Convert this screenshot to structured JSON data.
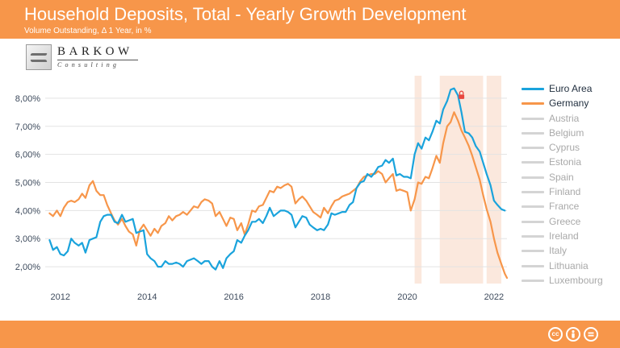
{
  "header": {
    "title": "Household Deposits, Total - Yearly Growth Development",
    "subtitle": "Volume Outstanding, Δ 1 Year, in %"
  },
  "logo": {
    "name": "BARKOW",
    "tagline": "Consulting"
  },
  "colors": {
    "brand": "#f7964a",
    "euro_area": "#1aa3dc",
    "germany": "#f7964a",
    "shading": "#fbe6d9",
    "muted_series": "#d4d4d4",
    "lock": "#e8473f"
  },
  "footer": {
    "license_icons": [
      "cc-icon",
      "attribution-icon",
      "no-derivatives-icon"
    ]
  },
  "chart_data": {
    "type": "line",
    "title": "Household Deposits, Total - Yearly Growth Development",
    "subtitle": "Volume Outstanding, Δ 1 Year, in %",
    "xlim": [
      2011.65,
      2022.3
    ],
    "ylim": [
      1.4,
      8.8
    ],
    "y_ticks": [
      2,
      3,
      4,
      5,
      6,
      7,
      8
    ],
    "y_tick_labels": [
      "2,00%",
      "3,00%",
      "4,00%",
      "5,00%",
      "6,00%",
      "7,00%",
      "8,00%"
    ],
    "x_ticks": [
      2012,
      2014,
      2016,
      2018,
      2020,
      2022
    ],
    "x_tick_labels": [
      "2012",
      "2014",
      "2016",
      "2018",
      "2020",
      "2022"
    ],
    "grid": "horizontal",
    "legend_position": "right",
    "shaded_periods": [
      [
        2020.17,
        2020.33
      ],
      [
        2020.75,
        2021.75
      ],
      [
        2021.83,
        2022.17
      ]
    ],
    "lock_marker": {
      "x": 2021.25,
      "y": 8.1
    },
    "series": [
      {
        "name": "Euro Area",
        "color": "#1aa3dc",
        "points": [
          [
            2011.75,
            2.95
          ],
          [
            2011.83,
            2.6
          ],
          [
            2011.92,
            2.7
          ],
          [
            2012.0,
            2.45
          ],
          [
            2012.08,
            2.4
          ],
          [
            2012.17,
            2.55
          ],
          [
            2012.25,
            3.0
          ],
          [
            2012.33,
            2.85
          ],
          [
            2012.42,
            2.75
          ],
          [
            2012.5,
            2.85
          ],
          [
            2012.58,
            2.5
          ],
          [
            2012.67,
            2.95
          ],
          [
            2012.75,
            3.0
          ],
          [
            2012.83,
            3.05
          ],
          [
            2012.92,
            3.6
          ],
          [
            2013.0,
            3.8
          ],
          [
            2013.08,
            3.85
          ],
          [
            2013.17,
            3.85
          ],
          [
            2013.25,
            3.6
          ],
          [
            2013.33,
            3.55
          ],
          [
            2013.42,
            3.85
          ],
          [
            2013.5,
            3.6
          ],
          [
            2013.58,
            3.65
          ],
          [
            2013.67,
            3.7
          ],
          [
            2013.75,
            3.2
          ],
          [
            2013.83,
            3.25
          ],
          [
            2013.92,
            3.3
          ],
          [
            2014.0,
            2.45
          ],
          [
            2014.08,
            2.3
          ],
          [
            2014.17,
            2.2
          ],
          [
            2014.25,
            2.0
          ],
          [
            2014.33,
            2.0
          ],
          [
            2014.42,
            2.2
          ],
          [
            2014.5,
            2.1
          ],
          [
            2014.58,
            2.1
          ],
          [
            2014.67,
            2.15
          ],
          [
            2014.75,
            2.1
          ],
          [
            2014.83,
            2.0
          ],
          [
            2014.92,
            2.2
          ],
          [
            2015.0,
            2.25
          ],
          [
            2015.08,
            2.3
          ],
          [
            2015.17,
            2.2
          ],
          [
            2015.25,
            2.1
          ],
          [
            2015.33,
            2.2
          ],
          [
            2015.42,
            2.2
          ],
          [
            2015.5,
            2.0
          ],
          [
            2015.58,
            1.9
          ],
          [
            2015.67,
            2.2
          ],
          [
            2015.75,
            1.95
          ],
          [
            2015.83,
            2.3
          ],
          [
            2015.92,
            2.45
          ],
          [
            2016.0,
            2.55
          ],
          [
            2016.08,
            2.95
          ],
          [
            2016.17,
            2.85
          ],
          [
            2016.25,
            3.1
          ],
          [
            2016.33,
            3.3
          ],
          [
            2016.42,
            3.6
          ],
          [
            2016.5,
            3.6
          ],
          [
            2016.58,
            3.7
          ],
          [
            2016.67,
            3.55
          ],
          [
            2016.75,
            3.8
          ],
          [
            2016.83,
            4.1
          ],
          [
            2016.92,
            3.8
          ],
          [
            2017.0,
            3.9
          ],
          [
            2017.08,
            4.0
          ],
          [
            2017.17,
            4.0
          ],
          [
            2017.25,
            3.95
          ],
          [
            2017.33,
            3.85
          ],
          [
            2017.42,
            3.4
          ],
          [
            2017.5,
            3.6
          ],
          [
            2017.58,
            3.8
          ],
          [
            2017.67,
            3.75
          ],
          [
            2017.75,
            3.5
          ],
          [
            2017.83,
            3.4
          ],
          [
            2017.92,
            3.3
          ],
          [
            2018.0,
            3.35
          ],
          [
            2018.08,
            3.3
          ],
          [
            2018.17,
            3.5
          ],
          [
            2018.25,
            3.9
          ],
          [
            2018.33,
            3.85
          ],
          [
            2018.42,
            3.9
          ],
          [
            2018.5,
            3.95
          ],
          [
            2018.58,
            3.95
          ],
          [
            2018.67,
            4.2
          ],
          [
            2018.75,
            4.3
          ],
          [
            2018.83,
            4.8
          ],
          [
            2018.92,
            5.0
          ],
          [
            2019.0,
            5.05
          ],
          [
            2019.08,
            5.3
          ],
          [
            2019.17,
            5.2
          ],
          [
            2019.25,
            5.35
          ],
          [
            2019.33,
            5.55
          ],
          [
            2019.42,
            5.6
          ],
          [
            2019.5,
            5.8
          ],
          [
            2019.58,
            5.7
          ],
          [
            2019.67,
            5.85
          ],
          [
            2019.75,
            5.25
          ],
          [
            2019.83,
            5.3
          ],
          [
            2019.92,
            5.2
          ],
          [
            2020.0,
            5.2
          ],
          [
            2020.08,
            5.15
          ],
          [
            2020.17,
            6.0
          ],
          [
            2020.25,
            6.4
          ],
          [
            2020.33,
            6.2
          ],
          [
            2020.42,
            6.6
          ],
          [
            2020.5,
            6.5
          ],
          [
            2020.58,
            6.8
          ],
          [
            2020.67,
            7.2
          ],
          [
            2020.75,
            7.1
          ],
          [
            2020.83,
            7.6
          ],
          [
            2020.92,
            7.9
          ],
          [
            2021.0,
            8.3
          ],
          [
            2021.08,
            8.35
          ],
          [
            2021.17,
            8.1
          ],
          [
            2021.25,
            7.5
          ],
          [
            2021.33,
            6.8
          ],
          [
            2021.42,
            6.75
          ],
          [
            2021.5,
            6.6
          ],
          [
            2021.58,
            6.3
          ],
          [
            2021.67,
            6.1
          ],
          [
            2021.75,
            5.7
          ],
          [
            2021.83,
            5.3
          ],
          [
            2021.92,
            4.9
          ],
          [
            2022.0,
            4.35
          ],
          [
            2022.08,
            4.2
          ],
          [
            2022.17,
            4.05
          ],
          [
            2022.25,
            4.0
          ]
        ]
      },
      {
        "name": "Germany",
        "color": "#f7964a",
        "points": [
          [
            2011.75,
            3.9
          ],
          [
            2011.83,
            3.8
          ],
          [
            2011.92,
            4.0
          ],
          [
            2012.0,
            3.8
          ],
          [
            2012.08,
            4.1
          ],
          [
            2012.17,
            4.3
          ],
          [
            2012.25,
            4.35
          ],
          [
            2012.33,
            4.3
          ],
          [
            2012.42,
            4.4
          ],
          [
            2012.5,
            4.6
          ],
          [
            2012.58,
            4.45
          ],
          [
            2012.67,
            4.9
          ],
          [
            2012.75,
            5.05
          ],
          [
            2012.83,
            4.7
          ],
          [
            2012.92,
            4.55
          ],
          [
            2013.0,
            4.55
          ],
          [
            2013.08,
            4.2
          ],
          [
            2013.17,
            3.9
          ],
          [
            2013.25,
            3.65
          ],
          [
            2013.33,
            3.5
          ],
          [
            2013.42,
            3.7
          ],
          [
            2013.5,
            3.45
          ],
          [
            2013.58,
            3.25
          ],
          [
            2013.67,
            3.15
          ],
          [
            2013.75,
            2.75
          ],
          [
            2013.83,
            3.3
          ],
          [
            2013.92,
            3.5
          ],
          [
            2014.0,
            3.3
          ],
          [
            2014.08,
            3.1
          ],
          [
            2014.17,
            3.35
          ],
          [
            2014.25,
            3.2
          ],
          [
            2014.33,
            3.45
          ],
          [
            2014.42,
            3.55
          ],
          [
            2014.5,
            3.8
          ],
          [
            2014.58,
            3.65
          ],
          [
            2014.67,
            3.8
          ],
          [
            2014.75,
            3.85
          ],
          [
            2014.83,
            3.95
          ],
          [
            2014.92,
            3.85
          ],
          [
            2015.0,
            4.0
          ],
          [
            2015.08,
            4.15
          ],
          [
            2015.17,
            4.1
          ],
          [
            2015.25,
            4.3
          ],
          [
            2015.33,
            4.4
          ],
          [
            2015.42,
            4.35
          ],
          [
            2015.5,
            4.25
          ],
          [
            2015.58,
            3.8
          ],
          [
            2015.67,
            3.95
          ],
          [
            2015.75,
            3.7
          ],
          [
            2015.83,
            3.45
          ],
          [
            2015.92,
            3.75
          ],
          [
            2016.0,
            3.7
          ],
          [
            2016.08,
            3.3
          ],
          [
            2016.17,
            3.55
          ],
          [
            2016.25,
            3.15
          ],
          [
            2016.33,
            3.5
          ],
          [
            2016.42,
            4.0
          ],
          [
            2016.5,
            3.95
          ],
          [
            2016.58,
            4.15
          ],
          [
            2016.67,
            4.2
          ],
          [
            2016.75,
            4.45
          ],
          [
            2016.83,
            4.7
          ],
          [
            2016.92,
            4.65
          ],
          [
            2017.0,
            4.85
          ],
          [
            2017.08,
            4.8
          ],
          [
            2017.17,
            4.9
          ],
          [
            2017.25,
            4.95
          ],
          [
            2017.33,
            4.85
          ],
          [
            2017.42,
            4.25
          ],
          [
            2017.5,
            4.4
          ],
          [
            2017.58,
            4.5
          ],
          [
            2017.67,
            4.35
          ],
          [
            2017.75,
            4.15
          ],
          [
            2017.83,
            3.95
          ],
          [
            2017.92,
            3.85
          ],
          [
            2018.0,
            3.75
          ],
          [
            2018.08,
            4.1
          ],
          [
            2018.17,
            3.9
          ],
          [
            2018.25,
            4.15
          ],
          [
            2018.33,
            4.35
          ],
          [
            2018.42,
            4.4
          ],
          [
            2018.5,
            4.5
          ],
          [
            2018.58,
            4.55
          ],
          [
            2018.67,
            4.6
          ],
          [
            2018.75,
            4.7
          ],
          [
            2018.83,
            4.8
          ],
          [
            2018.92,
            5.05
          ],
          [
            2019.0,
            5.2
          ],
          [
            2019.08,
            5.25
          ],
          [
            2019.17,
            5.3
          ],
          [
            2019.25,
            5.3
          ],
          [
            2019.33,
            5.4
          ],
          [
            2019.42,
            5.3
          ],
          [
            2019.5,
            5.0
          ],
          [
            2019.58,
            5.15
          ],
          [
            2019.67,
            5.3
          ],
          [
            2019.75,
            4.7
          ],
          [
            2019.83,
            4.75
          ],
          [
            2019.92,
            4.7
          ],
          [
            2020.0,
            4.65
          ],
          [
            2020.08,
            4.0
          ],
          [
            2020.17,
            4.4
          ],
          [
            2020.25,
            5.0
          ],
          [
            2020.33,
            4.95
          ],
          [
            2020.42,
            5.2
          ],
          [
            2020.5,
            5.15
          ],
          [
            2020.58,
            5.5
          ],
          [
            2020.67,
            5.95
          ],
          [
            2020.75,
            5.7
          ],
          [
            2020.83,
            6.4
          ],
          [
            2020.92,
            7.0
          ],
          [
            2021.0,
            7.15
          ],
          [
            2021.08,
            7.5
          ],
          [
            2021.17,
            7.2
          ],
          [
            2021.25,
            6.85
          ],
          [
            2021.33,
            6.6
          ],
          [
            2021.42,
            6.3
          ],
          [
            2021.5,
            5.95
          ],
          [
            2021.58,
            5.55
          ],
          [
            2021.67,
            5.1
          ],
          [
            2021.75,
            4.55
          ],
          [
            2021.83,
            4.05
          ],
          [
            2021.92,
            3.6
          ],
          [
            2022.0,
            3.0
          ],
          [
            2022.08,
            2.5
          ],
          [
            2022.17,
            2.1
          ],
          [
            2022.25,
            1.75
          ],
          [
            2022.3,
            1.6
          ]
        ]
      }
    ],
    "legend": [
      "Euro Area",
      "Germany",
      "Austria",
      "Belgium",
      "Cyprus",
      "Estonia",
      "Spain",
      "Finland",
      "France",
      "Greece",
      "Ireland",
      "Italy",
      "Lithuania",
      "Luxembourg"
    ]
  }
}
